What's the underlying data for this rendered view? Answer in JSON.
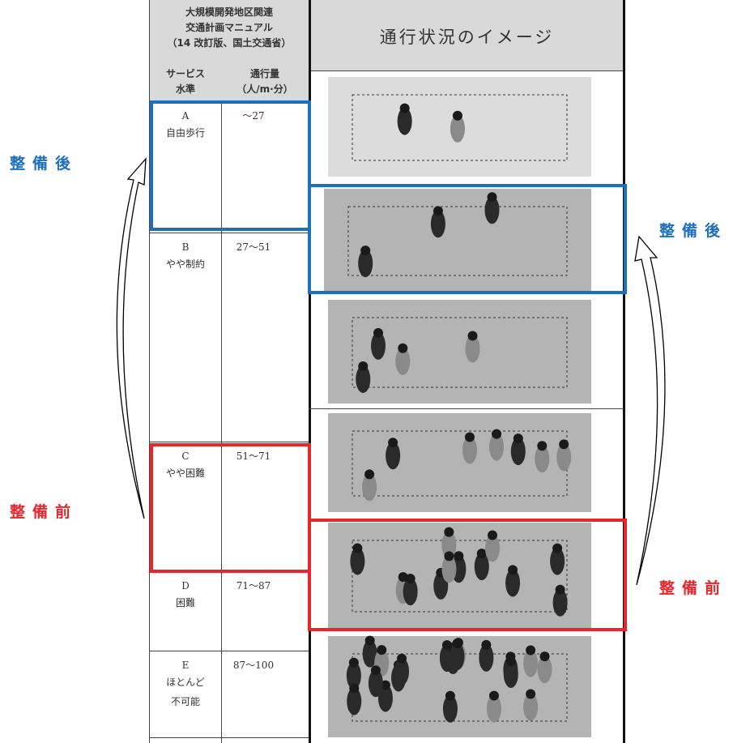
{
  "header": {
    "left_title": [
      "大規模開発地区関連",
      "交通計画マニュアル",
      "（14 改訂版、国土交通省）"
    ],
    "right_title": "通行状況のイメージ"
  },
  "columns": {
    "service": [
      "サービス",
      "水準"
    ],
    "flow": [
      "通行量",
      "（人/m·分）"
    ]
  },
  "rows": [
    {
      "level": "A",
      "name": [
        "自由歩行"
      ],
      "flow": "～27"
    },
    {
      "level": "B",
      "name": [
        "やや制約"
      ],
      "flow": "27～51"
    },
    {
      "level": "C",
      "name": [
        "やや困難"
      ],
      "flow": "51～71"
    },
    {
      "level": "D",
      "name": [
        "困難"
      ],
      "flow": "71～87"
    },
    {
      "level": "E",
      "name": [
        "ほとんど",
        "不可能"
      ],
      "flow": "87～100"
    }
  ],
  "annotations": {
    "after_left": "整備後",
    "after_right": "整備後",
    "before_left": "整備前",
    "before_right": "整備前"
  }
}
